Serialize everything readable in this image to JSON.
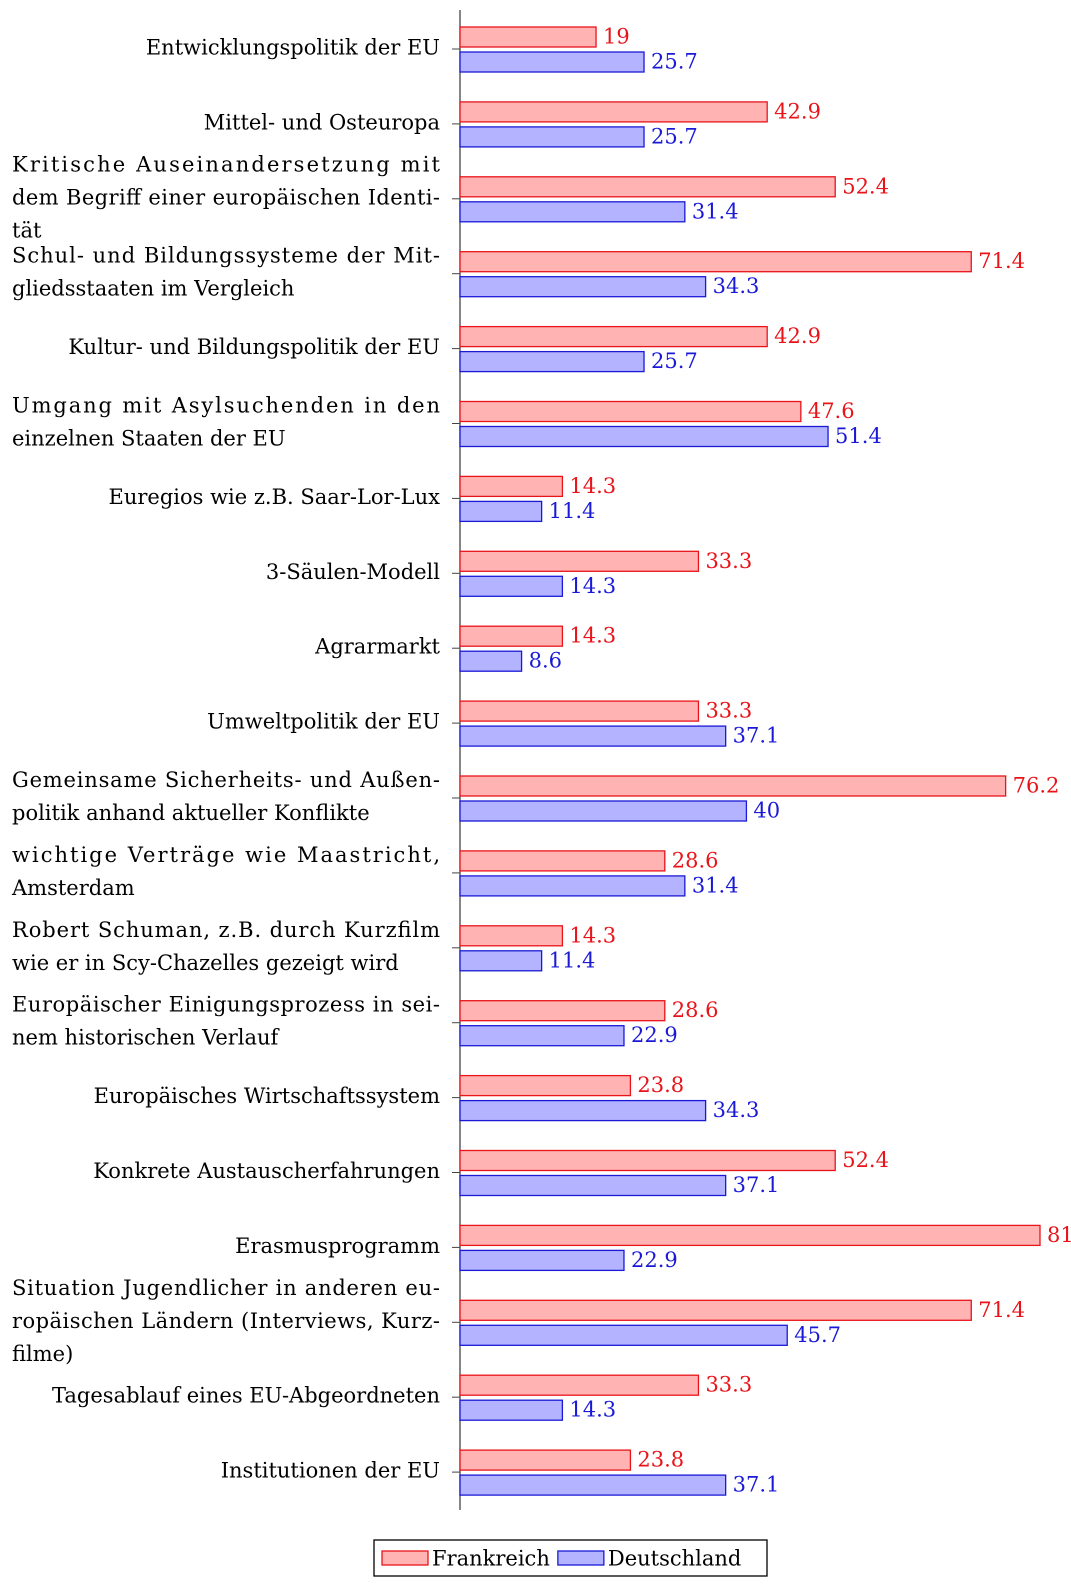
{
  "chart_data": {
    "type": "hbar",
    "categories": [
      [
        "Entwicklungspolitik der EU"
      ],
      [
        "Mittel- und Osteuropa"
      ],
      [
        "Kritische Auseinandersetzung mit",
        "dem Begriff einer europäischen Identi-",
        "tät"
      ],
      [
        "Schul- und Bildungssysteme der Mit-",
        "gliedsstaaten im Vergleich"
      ],
      [
        "Kultur- und Bildungspolitik der EU"
      ],
      [
        "Umgang mit Asylsuchenden in den",
        "einzelnen Staaten der EU"
      ],
      [
        "Euregios wie z.B. Saar-Lor-Lux"
      ],
      [
        "3-Säulen-Modell"
      ],
      [
        "Agrarmarkt"
      ],
      [
        "Umweltpolitik der EU"
      ],
      [
        "Gemeinsame Sicherheits- und Außen-",
        "politik anhand aktueller Konflikte"
      ],
      [
        "wichtige Verträge wie Maastricht,",
        "Amsterdam"
      ],
      [
        "Robert Schuman, z.B. durch Kurzfilm",
        "wie er in Scy-Chazelles gezeigt wird"
      ],
      [
        "Europäischer Einigungsprozess in sei-",
        "nem historischen Verlauf"
      ],
      [
        "Europäisches Wirtschaftssystem"
      ],
      [
        "Konkrete Austauscherfahrungen"
      ],
      [
        "Erasmusprogramm"
      ],
      [
        "Situation Jugendlicher in anderen eu-",
        "ropäischen Ländern (Interviews, Kurz-",
        "filme)"
      ],
      [
        "Tagesablauf eines EU-Abgeordneten"
      ],
      [
        "Institutionen der EU"
      ]
    ],
    "series": [
      {
        "name": "Frankreich",
        "color": "#ffb3b3",
        "edge": "#e8141a",
        "values": [
          19,
          42.9,
          52.4,
          71.4,
          42.9,
          47.6,
          14.3,
          33.3,
          14.3,
          33.3,
          76.2,
          28.6,
          14.3,
          28.6,
          23.8,
          52.4,
          81,
          71.4,
          33.3,
          23.8
        ]
      },
      {
        "name": "Deutschland",
        "color": "#b3b3ff",
        "edge": "#1a1ad6",
        "values": [
          25.7,
          25.7,
          31.4,
          34.3,
          25.7,
          51.4,
          11.4,
          14.3,
          8.6,
          37.1,
          40,
          31.4,
          11.4,
          22.9,
          34.3,
          37.1,
          22.9,
          45.7,
          14.3,
          37.1
        ]
      }
    ],
    "xlim": [
      0,
      81
    ],
    "legend": "bottom"
  }
}
